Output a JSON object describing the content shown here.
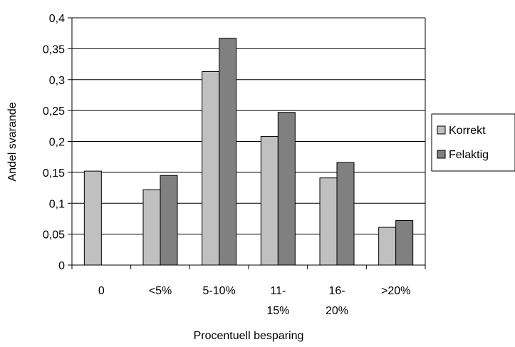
{
  "chart_data": {
    "type": "bar",
    "categories": [
      [
        "0"
      ],
      [
        "<5%"
      ],
      [
        "5-10%"
      ],
      [
        "11-",
        "15%"
      ],
      [
        "16-",
        "20%"
      ],
      [
        ">20%"
      ]
    ],
    "series": [
      {
        "name": "Korrekt",
        "color": "#c0c0c0",
        "values": [
          0.152,
          0.122,
          0.313,
          0.208,
          0.141,
          0.061
        ]
      },
      {
        "name": "Felaktig",
        "color": "#808080",
        "values": [
          0,
          0.145,
          0.367,
          0.247,
          0.166,
          0.072
        ]
      }
    ],
    "ylim": [
      0,
      0.4
    ],
    "yticks": [
      "0",
      "0,05",
      "0,1",
      "0,15",
      "0,2",
      "0,25",
      "0,3",
      "0,35",
      "0,4"
    ],
    "xlabel": "Procentuell besparing",
    "ylabel": "Andel svarande",
    "grid": true,
    "legend_position": "right"
  }
}
